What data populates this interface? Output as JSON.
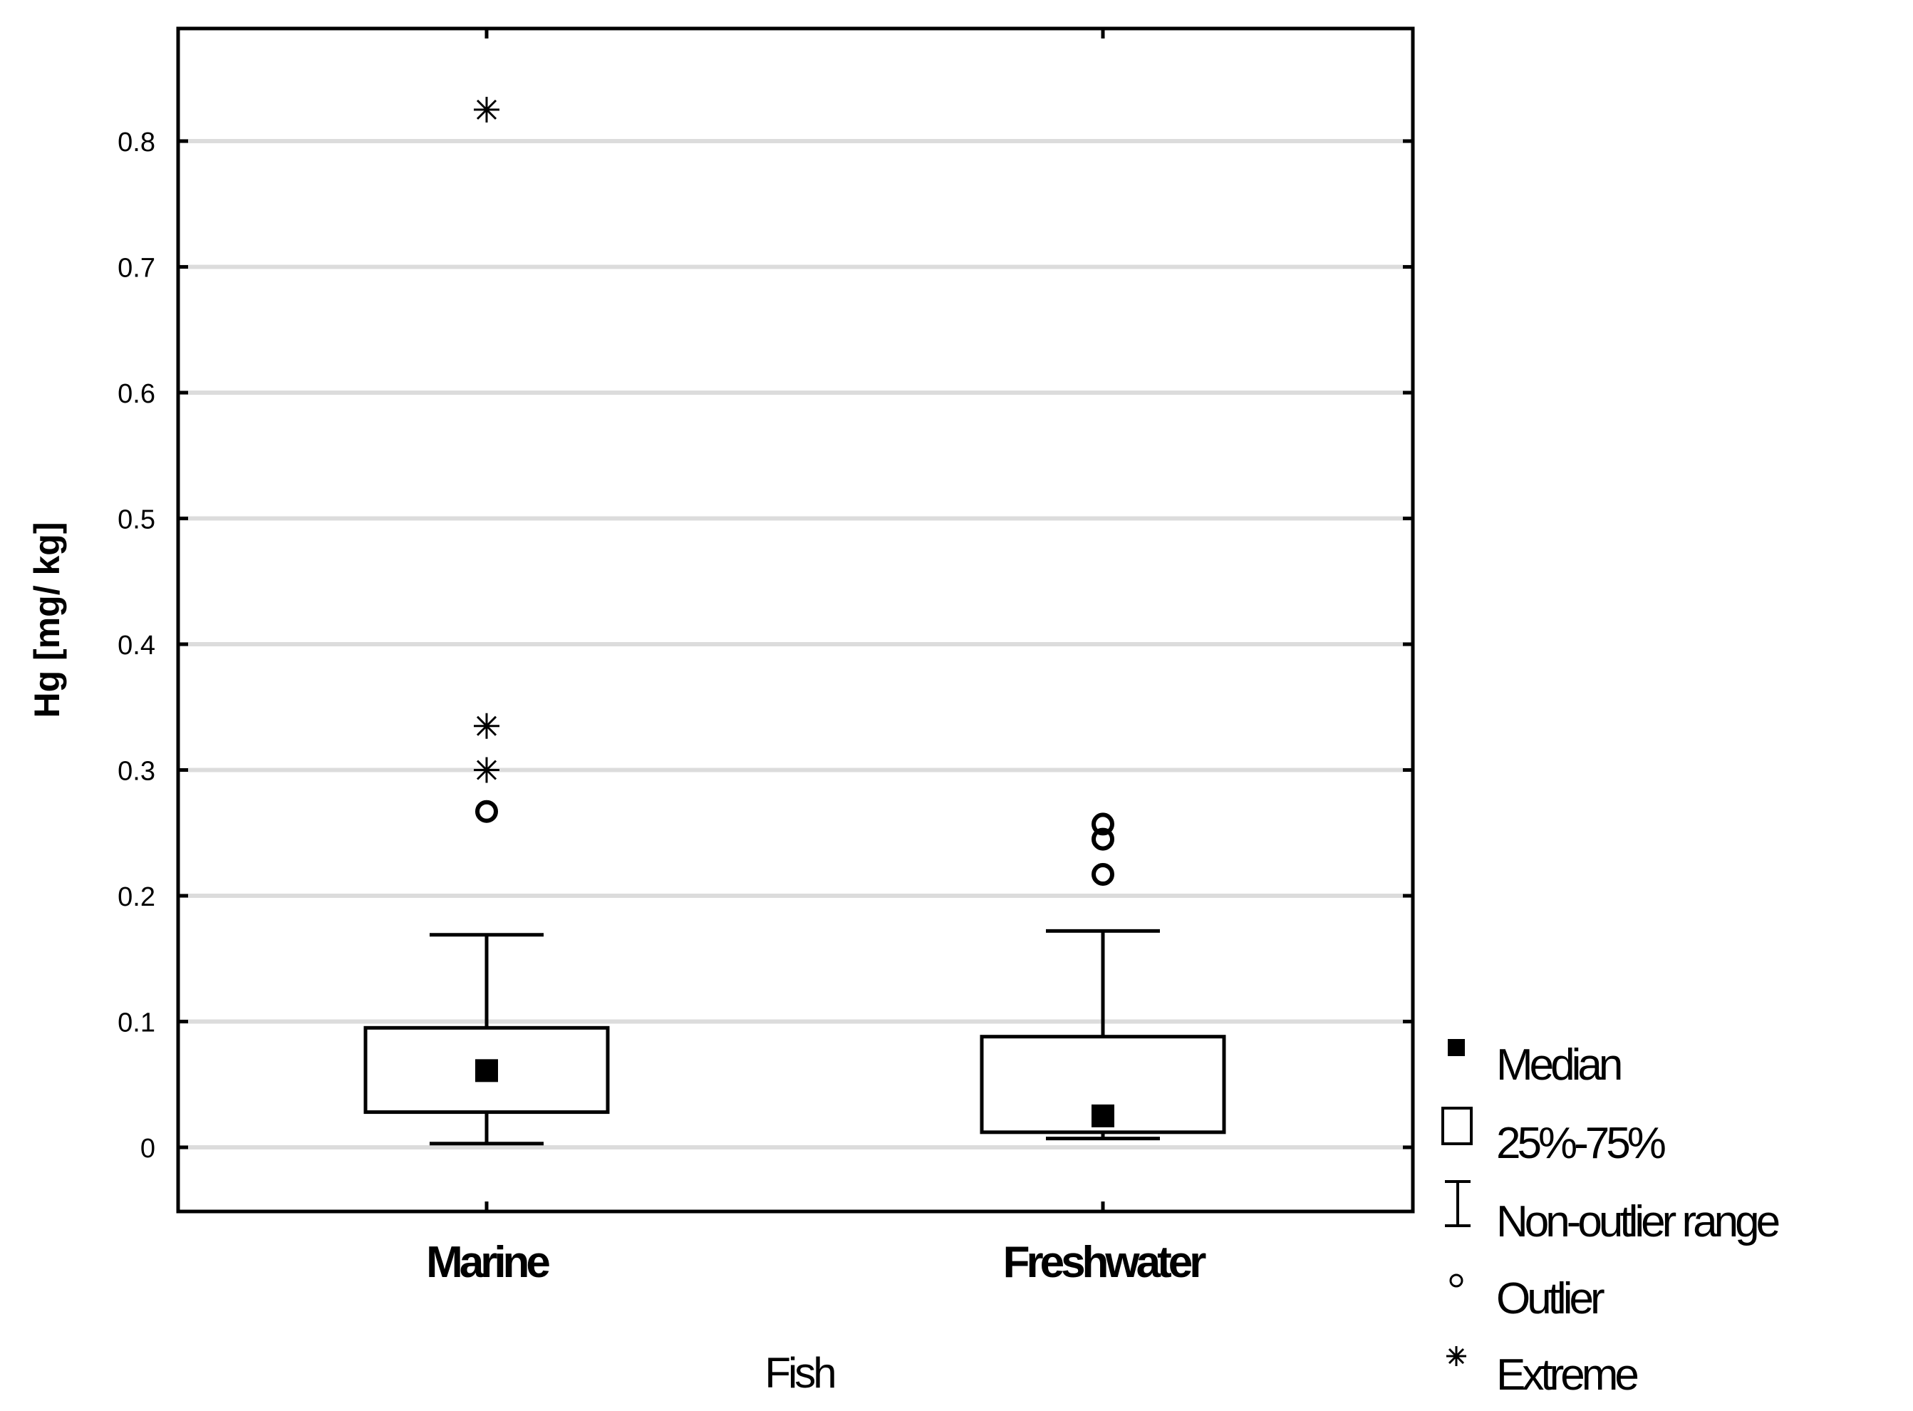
{
  "chart_data": {
    "type": "box",
    "xlabel": "Fish",
    "ylabel": "Hg [mg/ kg]",
    "ylim": [
      -0.05,
      0.88
    ],
    "yticks": [
      0,
      0.1,
      0.2,
      0.3,
      0.4,
      0.5,
      0.6,
      0.7,
      0.8
    ],
    "ytick_labels": [
      "0",
      "0.1",
      "0.2",
      "0.3",
      "0.4",
      "0.5",
      "0.6",
      "0.7",
      "0.8"
    ],
    "grid": true,
    "categories": [
      "Marine",
      "Freshwater"
    ],
    "boxes": [
      {
        "category": "Marine",
        "whisker_low": 0.003,
        "q1": 0.028,
        "median": 0.061,
        "q3": 0.095,
        "whisker_high": 0.169,
        "outliers": [
          0.267
        ],
        "extremes": [
          0.3,
          0.335,
          0.825
        ]
      },
      {
        "category": "Freshwater",
        "whisker_low": 0.007,
        "q1": 0.012,
        "median": 0.025,
        "q3": 0.088,
        "whisker_high": 0.172,
        "outliers": [
          0.217,
          0.245,
          0.257
        ],
        "extremes": []
      }
    ],
    "legend": {
      "position": "right-bottom",
      "items": [
        {
          "symbol": "median-square",
          "label": "Median"
        },
        {
          "symbol": "box-square",
          "label": "25%-75%"
        },
        {
          "symbol": "whisker",
          "label": "Non-outlier range"
        },
        {
          "symbol": "circle",
          "label": "Outlier"
        },
        {
          "symbol": "asterisk",
          "label": "Extreme"
        }
      ]
    }
  }
}
